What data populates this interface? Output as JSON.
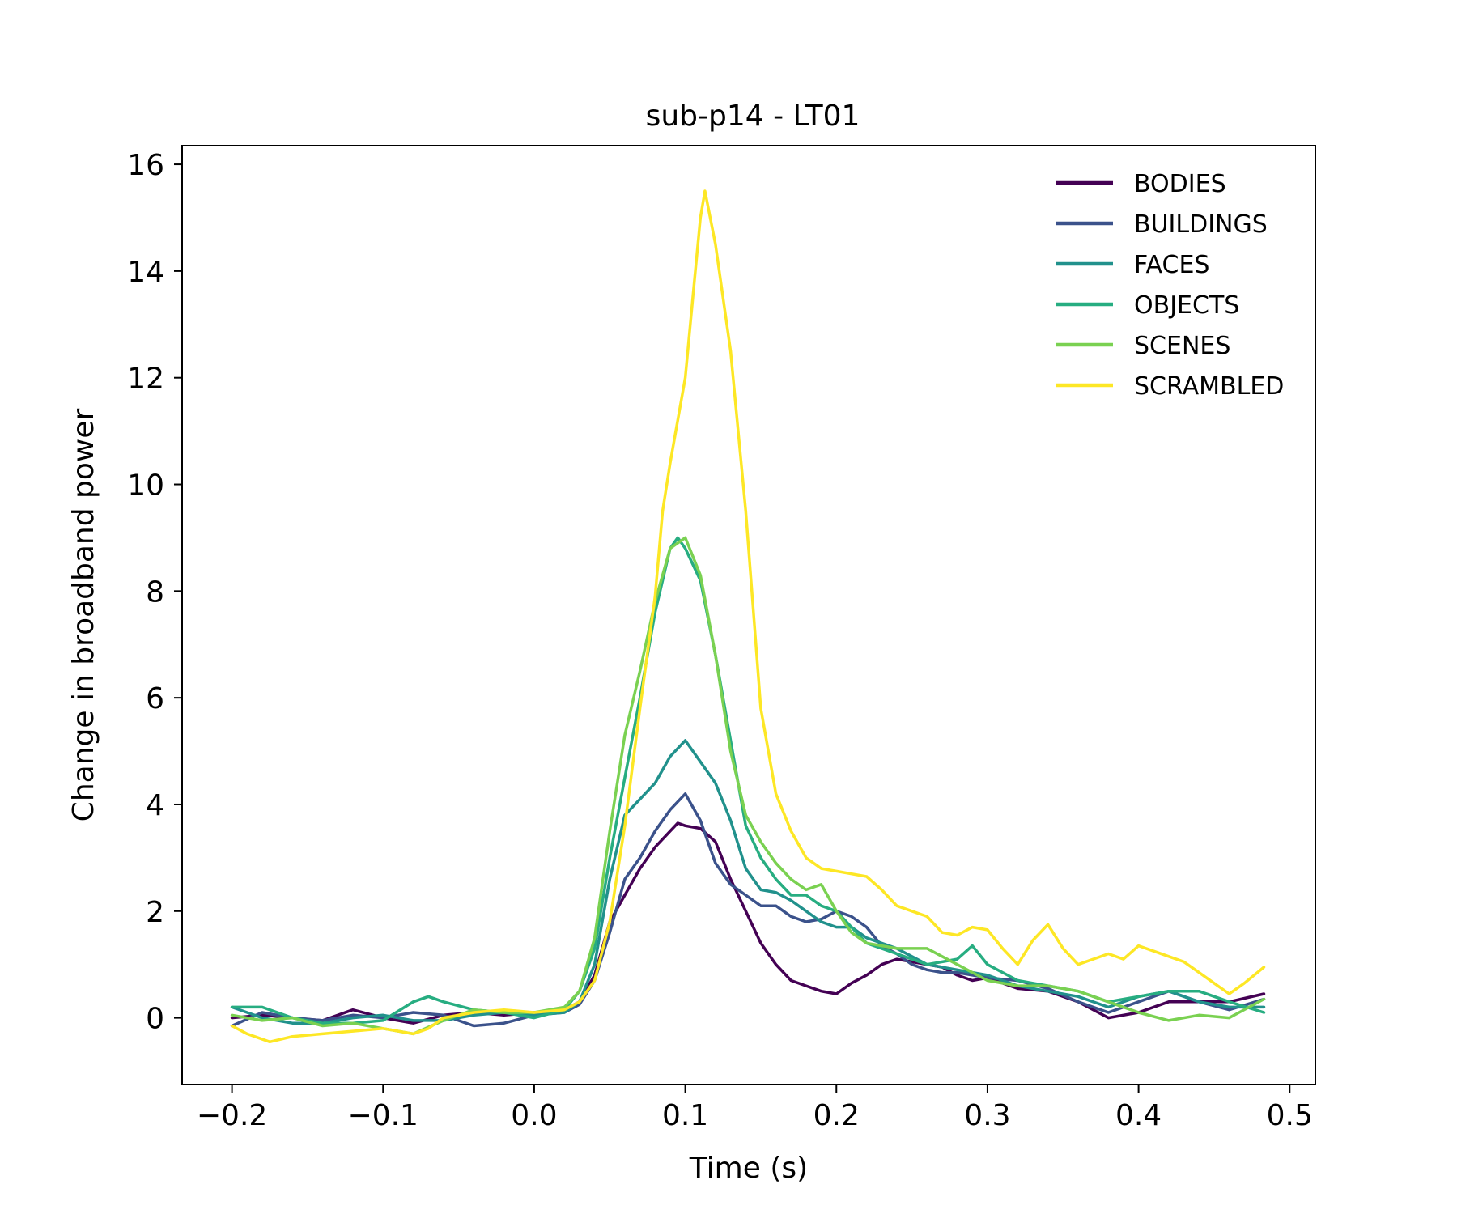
{
  "chart_data": {
    "type": "line",
    "title": "sub-p14 - LT01",
    "xlabel": "Time (s)",
    "ylabel": "Change in broadband power",
    "xlim": [
      -0.233,
      0.517
    ],
    "ylim": [
      -1.25,
      16.35
    ],
    "xticks": [
      -0.2,
      -0.1,
      0.0,
      0.1,
      0.2,
      0.3,
      0.4,
      0.5
    ],
    "xtick_labels": [
      "−0.2",
      "−0.1",
      "0.0",
      "0.1",
      "0.2",
      "0.3",
      "0.4",
      "0.5"
    ],
    "yticks": [
      0,
      2,
      4,
      6,
      8,
      10,
      12,
      14,
      16
    ],
    "ytick_labels": [
      "0",
      "2",
      "4",
      "6",
      "8",
      "10",
      "12",
      "14",
      "16"
    ],
    "grid": false,
    "legend_position": "top-right",
    "series": [
      {
        "name": "BODIES",
        "color": "#440154",
        "x": [
          -0.2,
          -0.18,
          -0.16,
          -0.14,
          -0.12,
          -0.1,
          -0.08,
          -0.06,
          -0.04,
          -0.02,
          0.0,
          0.02,
          0.03,
          0.04,
          0.05,
          0.06,
          0.07,
          0.08,
          0.09,
          0.095,
          0.1,
          0.11,
          0.12,
          0.13,
          0.14,
          0.15,
          0.16,
          0.17,
          0.18,
          0.19,
          0.2,
          0.21,
          0.22,
          0.23,
          0.24,
          0.25,
          0.26,
          0.27,
          0.28,
          0.29,
          0.3,
          0.32,
          0.34,
          0.36,
          0.38,
          0.4,
          0.42,
          0.44,
          0.46,
          0.483
        ],
        "y": [
          0.0,
          0.05,
          0.0,
          -0.05,
          0.15,
          0.0,
          -0.1,
          0.05,
          0.1,
          0.05,
          0.1,
          0.15,
          0.3,
          0.8,
          1.8,
          2.3,
          2.8,
          3.2,
          3.5,
          3.65,
          3.6,
          3.55,
          3.3,
          2.6,
          2.0,
          1.4,
          1.0,
          0.7,
          0.6,
          0.5,
          0.45,
          0.65,
          0.8,
          1.0,
          1.1,
          1.05,
          1.0,
          0.95,
          0.8,
          0.7,
          0.75,
          0.55,
          0.5,
          0.3,
          0.0,
          0.1,
          0.3,
          0.3,
          0.3,
          0.45
        ]
      },
      {
        "name": "BUILDINGS",
        "color": "#3b528b",
        "x": [
          -0.2,
          -0.18,
          -0.16,
          -0.14,
          -0.12,
          -0.1,
          -0.08,
          -0.06,
          -0.04,
          -0.02,
          0.0,
          0.02,
          0.03,
          0.04,
          0.05,
          0.06,
          0.07,
          0.08,
          0.09,
          0.1,
          0.11,
          0.12,
          0.13,
          0.14,
          0.15,
          0.16,
          0.17,
          0.18,
          0.19,
          0.2,
          0.21,
          0.22,
          0.23,
          0.24,
          0.25,
          0.26,
          0.27,
          0.28,
          0.3,
          0.32,
          0.34,
          0.36,
          0.38,
          0.4,
          0.42,
          0.44,
          0.46,
          0.483
        ],
        "y": [
          -0.15,
          0.1,
          0.0,
          -0.05,
          0.05,
          0.0,
          0.1,
          0.05,
          -0.15,
          -0.1,
          0.05,
          0.1,
          0.25,
          0.7,
          1.6,
          2.6,
          3.0,
          3.5,
          3.9,
          4.2,
          3.7,
          2.9,
          2.5,
          2.3,
          2.1,
          2.1,
          1.9,
          1.8,
          1.85,
          2.0,
          1.9,
          1.7,
          1.35,
          1.2,
          1.0,
          0.9,
          0.85,
          0.85,
          0.75,
          0.7,
          0.55,
          0.3,
          0.1,
          0.3,
          0.5,
          0.3,
          0.15,
          0.35
        ]
      },
      {
        "name": "FACES",
        "color": "#21918c",
        "x": [
          -0.2,
          -0.18,
          -0.16,
          -0.14,
          -0.12,
          -0.1,
          -0.08,
          -0.06,
          -0.04,
          -0.02,
          0.0,
          0.02,
          0.03,
          0.04,
          0.05,
          0.06,
          0.07,
          0.08,
          0.09,
          0.1,
          0.11,
          0.12,
          0.13,
          0.14,
          0.15,
          0.16,
          0.17,
          0.18,
          0.19,
          0.2,
          0.21,
          0.22,
          0.24,
          0.26,
          0.28,
          0.3,
          0.32,
          0.34,
          0.36,
          0.38,
          0.4,
          0.42,
          0.44,
          0.46,
          0.483
        ],
        "y": [
          0.2,
          0.0,
          -0.1,
          -0.1,
          0.0,
          0.05,
          -0.05,
          -0.05,
          0.05,
          0.1,
          0.05,
          0.1,
          0.3,
          1.0,
          2.6,
          3.8,
          4.1,
          4.4,
          4.9,
          5.2,
          4.8,
          4.4,
          3.7,
          2.8,
          2.4,
          2.35,
          2.2,
          2.0,
          1.8,
          1.7,
          1.7,
          1.5,
          1.3,
          1.0,
          0.9,
          0.8,
          0.6,
          0.5,
          0.4,
          0.2,
          0.4,
          0.5,
          0.3,
          0.2,
          0.2
        ]
      },
      {
        "name": "OBJECTS",
        "color": "#27ad81",
        "x": [
          -0.2,
          -0.18,
          -0.16,
          -0.14,
          -0.12,
          -0.1,
          -0.08,
          -0.07,
          -0.06,
          -0.04,
          -0.02,
          0.0,
          0.02,
          0.03,
          0.04,
          0.05,
          0.06,
          0.07,
          0.08,
          0.09,
          0.095,
          0.1,
          0.11,
          0.12,
          0.13,
          0.14,
          0.15,
          0.16,
          0.17,
          0.18,
          0.19,
          0.2,
          0.21,
          0.22,
          0.24,
          0.26,
          0.28,
          0.29,
          0.3,
          0.32,
          0.34,
          0.36,
          0.38,
          0.4,
          0.42,
          0.44,
          0.46,
          0.483
        ],
        "y": [
          0.2,
          0.2,
          0.0,
          -0.1,
          -0.1,
          -0.05,
          0.3,
          0.4,
          0.3,
          0.15,
          0.1,
          0.0,
          0.15,
          0.5,
          1.3,
          3.0,
          4.5,
          6.0,
          7.6,
          8.8,
          9.0,
          8.8,
          8.2,
          6.8,
          5.2,
          3.6,
          3.0,
          2.6,
          2.3,
          2.3,
          2.1,
          2.0,
          1.7,
          1.4,
          1.2,
          1.0,
          1.1,
          1.35,
          1.0,
          0.7,
          0.6,
          0.5,
          0.3,
          0.4,
          0.5,
          0.5,
          0.3,
          0.1
        ]
      },
      {
        "name": "SCENES",
        "color": "#7ad151",
        "x": [
          -0.2,
          -0.18,
          -0.16,
          -0.14,
          -0.12,
          -0.1,
          -0.08,
          -0.06,
          -0.04,
          -0.02,
          0.0,
          0.02,
          0.03,
          0.04,
          0.05,
          0.06,
          0.07,
          0.08,
          0.09,
          0.1,
          0.11,
          0.12,
          0.13,
          0.14,
          0.15,
          0.16,
          0.17,
          0.18,
          0.19,
          0.2,
          0.21,
          0.22,
          0.24,
          0.26,
          0.28,
          0.3,
          0.32,
          0.34,
          0.36,
          0.38,
          0.4,
          0.42,
          0.44,
          0.46,
          0.483
        ],
        "y": [
          0.05,
          -0.05,
          0.0,
          -0.15,
          -0.1,
          -0.2,
          -0.3,
          -0.05,
          0.15,
          0.1,
          0.1,
          0.2,
          0.5,
          1.5,
          3.5,
          5.3,
          6.5,
          7.8,
          8.8,
          9.0,
          8.3,
          6.8,
          5.0,
          3.8,
          3.3,
          2.9,
          2.6,
          2.4,
          2.5,
          2.0,
          1.6,
          1.4,
          1.3,
          1.3,
          1.0,
          0.7,
          0.6,
          0.6,
          0.5,
          0.3,
          0.1,
          -0.05,
          0.05,
          0.0,
          0.35
        ]
      },
      {
        "name": "SCRAMBLED",
        "color": "#fde725",
        "x": [
          -0.2,
          -0.19,
          -0.175,
          -0.16,
          -0.14,
          -0.12,
          -0.1,
          -0.08,
          -0.07,
          -0.06,
          -0.04,
          -0.02,
          0.0,
          0.02,
          0.03,
          0.04,
          0.05,
          0.06,
          0.07,
          0.08,
          0.085,
          0.09,
          0.1,
          0.105,
          0.11,
          0.113,
          0.12,
          0.13,
          0.14,
          0.15,
          0.16,
          0.17,
          0.18,
          0.19,
          0.2,
          0.21,
          0.22,
          0.23,
          0.24,
          0.25,
          0.26,
          0.27,
          0.28,
          0.29,
          0.3,
          0.31,
          0.32,
          0.33,
          0.34,
          0.35,
          0.36,
          0.37,
          0.38,
          0.39,
          0.4,
          0.41,
          0.42,
          0.43,
          0.44,
          0.45,
          0.46,
          0.47,
          0.483
        ],
        "y": [
          -0.15,
          -0.3,
          -0.45,
          -0.35,
          -0.3,
          -0.25,
          -0.2,
          -0.3,
          -0.2,
          0.0,
          0.1,
          0.15,
          0.1,
          0.15,
          0.3,
          0.7,
          1.8,
          3.6,
          5.8,
          7.9,
          9.5,
          10.4,
          12.0,
          13.5,
          15.0,
          15.5,
          14.5,
          12.5,
          9.5,
          5.8,
          4.2,
          3.5,
          3.0,
          2.8,
          2.75,
          2.7,
          2.65,
          2.4,
          2.1,
          2.0,
          1.9,
          1.6,
          1.55,
          1.7,
          1.65,
          1.3,
          1.0,
          1.45,
          1.75,
          1.3,
          1.0,
          1.1,
          1.2,
          1.1,
          1.35,
          1.25,
          1.15,
          1.05,
          0.85,
          0.65,
          0.45,
          0.65,
          0.95
        ]
      }
    ]
  }
}
